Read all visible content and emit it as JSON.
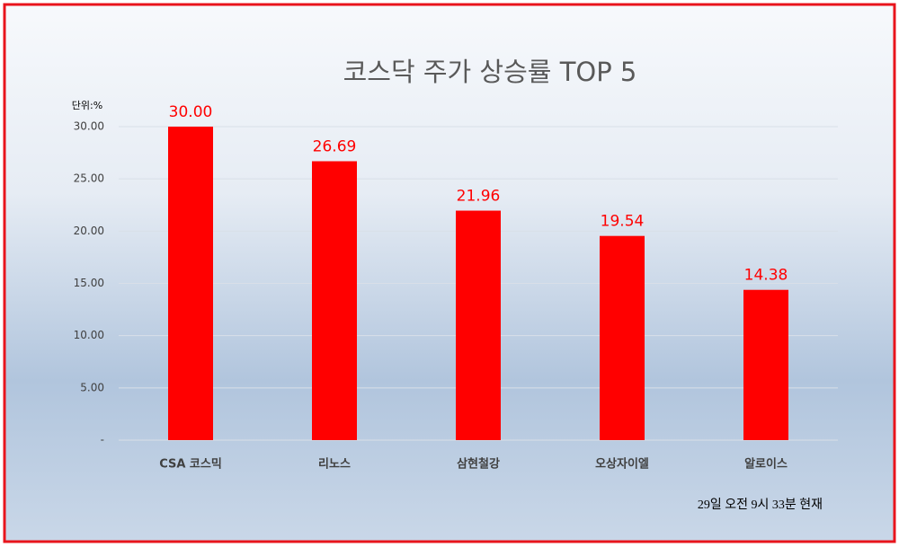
{
  "chart_data": {
    "type": "bar",
    "title": "코스닥 주가 상승률 TOP 5",
    "unit_label": "단위:%",
    "note": "29일  오전 9시 33분 현재",
    "categories": [
      "CSA 코스믹",
      "리노스",
      "삼현철강",
      "오상자이엘",
      "알로이스"
    ],
    "values": [
      30.0,
      26.69,
      21.96,
      19.54,
      14.38
    ],
    "value_labels": [
      "30.00",
      "26.69",
      "21.96",
      "19.54",
      "14.38"
    ],
    "color": "#ff0000",
    "ylim": [
      0,
      30
    ],
    "yticks": [
      {
        "value": 0,
        "label": "-"
      },
      {
        "value": 5,
        "label": "5.00"
      },
      {
        "value": 10,
        "label": "10.00"
      },
      {
        "value": 15,
        "label": "15.00"
      },
      {
        "value": 20,
        "label": "20.00"
      },
      {
        "value": 25,
        "label": "25.00"
      },
      {
        "value": 30,
        "label": "30.00"
      }
    ],
    "grid": true
  }
}
